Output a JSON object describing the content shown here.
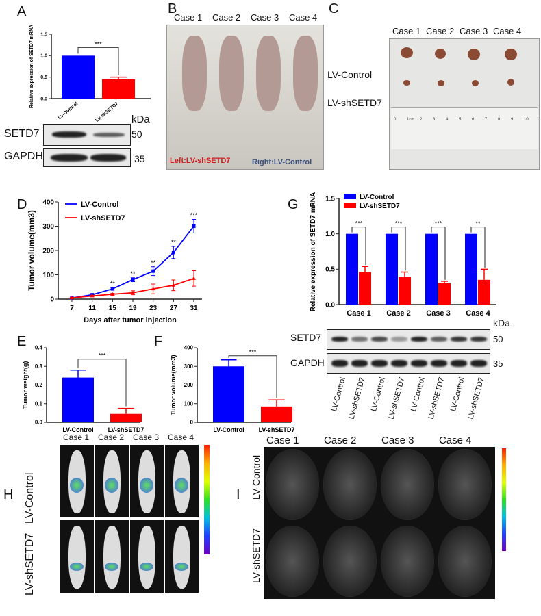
{
  "panels": {
    "A": "A",
    "B": "B",
    "C": "C",
    "D": "D",
    "E": "E",
    "F": "F",
    "G": "G",
    "H": "H",
    "I": "I"
  },
  "cases": [
    "Case 1",
    "Case 2",
    "Case 3",
    "Case 4"
  ],
  "groups": {
    "control": "LV-Control",
    "sh": "LV-shSETD7"
  },
  "colors": {
    "control": "#0000ff",
    "sh": "#ff0000"
  },
  "western": {
    "setd7": "SETD7",
    "gapdh": "GAPDH",
    "kda": "kDa",
    "mw50": "50",
    "mw35": "35"
  },
  "photo_b": {
    "left": "Left:LV-shSETD7",
    "right": "Right:LV-Control"
  },
  "ruler": [
    "0",
    "1cm",
    "2",
    "3",
    "4",
    "5",
    "6",
    "7",
    "8",
    "9",
    "10",
    "11"
  ],
  "chart_data": [
    {
      "id": "A",
      "type": "bar",
      "ylabel": "Relative expression of SETD7 mRNA",
      "categories": [
        "LV-Control",
        "LV-shSETD7"
      ],
      "values": [
        1.0,
        0.45
      ],
      "errors": [
        0,
        0.05
      ],
      "ylim": [
        0,
        1.5
      ],
      "yticks": [
        "0.0",
        "0.5",
        "1.0",
        "1.5"
      ],
      "significance": "***"
    },
    {
      "id": "D",
      "type": "line",
      "xlabel": "Days after tumor injection",
      "ylabel": "Tumor volume(mm3)",
      "x": [
        7,
        11,
        15,
        19,
        23,
        27,
        31
      ],
      "ylim": [
        0,
        400
      ],
      "yticks": [
        "0",
        "100",
        "200",
        "300",
        "400"
      ],
      "legend": "top-left",
      "series": [
        {
          "name": "LV-Control",
          "values": [
            5,
            18,
            42,
            80,
            115,
            192,
            300
          ],
          "errors": [
            2,
            3,
            5,
            8,
            18,
            25,
            28
          ]
        },
        {
          "name": "LV-shSETD7",
          "values": [
            5,
            13,
            20,
            26,
            42,
            57,
            85
          ],
          "errors": [
            2,
            3,
            4,
            8,
            20,
            22,
            32
          ]
        }
      ],
      "significance": [
        "",
        "",
        "**",
        "**",
        "**",
        "**",
        "***"
      ]
    },
    {
      "id": "E",
      "type": "bar",
      "ylabel": "Tumor weight(g)",
      "categories": [
        "LV-Control",
        "LV-shSETD7"
      ],
      "values": [
        0.24,
        0.045
      ],
      "errors": [
        0.04,
        0.03
      ],
      "ylim": [
        0,
        0.4
      ],
      "yticks": [
        "0.0",
        "0.1",
        "0.2",
        "0.3",
        "0.4"
      ],
      "significance": "***"
    },
    {
      "id": "F",
      "type": "bar",
      "ylabel": "Tumor volume(mm3)",
      "categories": [
        "LV-Control",
        "LV-shSETD7"
      ],
      "values": [
        300,
        85
      ],
      "errors": [
        35,
        35
      ],
      "ylim": [
        0,
        400
      ],
      "yticks": [
        "0",
        "100",
        "200",
        "300",
        "400"
      ],
      "significance": "***"
    },
    {
      "id": "G",
      "type": "bar",
      "ylabel": "Relative expression of SETD7 mRNA",
      "categories": [
        "Case 1",
        "Case 2",
        "Case 3",
        "Case 4"
      ],
      "ylim": [
        0,
        1.5
      ],
      "yticks": [
        "0.0",
        "0.5",
        "1.0",
        "1.5"
      ],
      "legend": "top-left",
      "series": [
        {
          "name": "LV-Control",
          "values": [
            1,
            1,
            1,
            1
          ],
          "errors": [
            0,
            0,
            0,
            0
          ]
        },
        {
          "name": "LV-shSETD7",
          "values": [
            0.46,
            0.39,
            0.3,
            0.35
          ],
          "errors": [
            0.08,
            0.07,
            0.03,
            0.15
          ]
        }
      ],
      "significance": [
        "***",
        "***",
        "***",
        "**"
      ]
    }
  ]
}
